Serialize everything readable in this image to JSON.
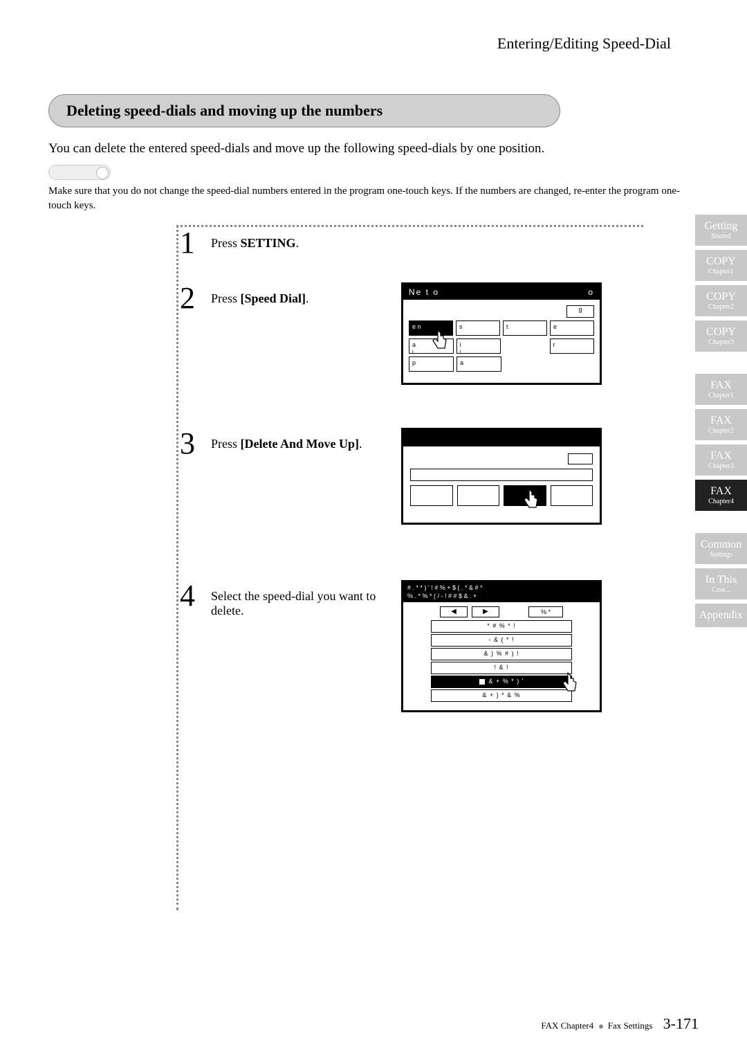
{
  "header": {
    "title": "Entering/Editing Speed-Dial"
  },
  "section": {
    "heading": "Deleting speed-dials and moving up the numbers"
  },
  "intro": "You can delete the entered speed-dials and move up the following speed-dials by one position.",
  "note": "Make sure that you do not change the speed-dial numbers entered in the program one-touch keys. If the numbers are changed, re-enter the program one-touch keys.",
  "steps": [
    {
      "num": "1",
      "text_pre": "Press ",
      "bold": "SETTING",
      "text_post": "."
    },
    {
      "num": "2",
      "text_pre": "Press ",
      "bold": "[Speed Dial]",
      "text_post": "."
    },
    {
      "num": "3",
      "text_pre": "Press ",
      "bold": "[Delete And Move Up]",
      "text_post": "."
    },
    {
      "num": "4",
      "text_pre": "Select the speed-dial you want to delete.",
      "bold": "",
      "text_post": ""
    }
  ],
  "screen1": {
    "title_left": "Ne    t   o",
    "title_right": "o",
    "page_btn": "g",
    "row1": [
      "e  n",
      "s",
      "t",
      "e"
    ],
    "row2": [
      "a",
      "i",
      "",
      "r"
    ],
    "row2b": [
      "i",
      "i",
      "",
      ""
    ],
    "row3": [
      "p",
      "a",
      "",
      ""
    ]
  },
  "screen3": {
    "title1": "#  . *  *     ) '       !  #   % + $   ( . * &      #  *",
    "title2": "% . *    % * ( /  - ! # #  $ & .    +",
    "nav_pct": "% *",
    "rows": [
      "* #   % *           !",
      "-     & ( *        !",
      "& )    %    # )    !",
      "!     &         !",
      "& + % * )       '",
      "& + ) * & %"
    ],
    "selected_index": 4
  },
  "tabs": [
    {
      "main": "Getting",
      "sub": "Started",
      "active": false
    },
    {
      "main": "COPY",
      "sub": "Chapter1",
      "active": false
    },
    {
      "main": "COPY",
      "sub": "Chapter2",
      "active": false
    },
    {
      "main": "COPY",
      "sub": "Chapter3",
      "active": false
    },
    {
      "spacer": true
    },
    {
      "main": "FAX",
      "sub": "Chapter1",
      "active": false
    },
    {
      "main": "FAX",
      "sub": "Chapter2",
      "active": false
    },
    {
      "main": "FAX",
      "sub": "Chapter3",
      "active": false
    },
    {
      "main": "FAX",
      "sub": "Chapter4",
      "active": true
    },
    {
      "spacer": true
    },
    {
      "main": "Common",
      "sub": "Settings",
      "active": false
    },
    {
      "main": "In This",
      "sub": "Case...",
      "active": false
    },
    {
      "main": "Appendix",
      "sub": "",
      "active": false
    }
  ],
  "footer": {
    "path": "FAX Chapter4",
    "section": "Fax Settings",
    "page": "3-171"
  }
}
